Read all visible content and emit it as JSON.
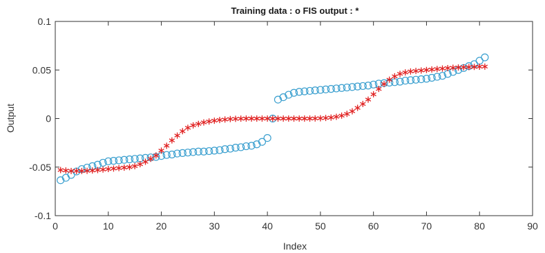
{
  "chart_data": {
    "type": "scatter",
    "title": "Training data : o   FIS output : *",
    "xlabel": "Index",
    "ylabel": "Output",
    "xlim": [
      0,
      90
    ],
    "ylim": [
      -0.1,
      0.1
    ],
    "xticks": [
      0,
      10,
      20,
      30,
      40,
      50,
      60,
      70,
      80,
      90
    ],
    "yticks": [
      -0.1,
      -0.05,
      0,
      0.05,
      0.1
    ],
    "xtick_labels": [
      "0",
      "10",
      "20",
      "30",
      "40",
      "50",
      "60",
      "70",
      "80",
      "90"
    ],
    "ytick_labels": [
      "-0.1",
      "-0.05",
      "0",
      "0.05",
      "0.1"
    ],
    "grid": false,
    "x": [
      1,
      2,
      3,
      4,
      5,
      6,
      7,
      8,
      9,
      10,
      11,
      12,
      13,
      14,
      15,
      16,
      17,
      18,
      19,
      20,
      21,
      22,
      23,
      24,
      25,
      26,
      27,
      28,
      29,
      30,
      31,
      32,
      33,
      34,
      35,
      36,
      37,
      38,
      39,
      40,
      41,
      42,
      43,
      44,
      45,
      46,
      47,
      48,
      49,
      50,
      51,
      52,
      53,
      54,
      55,
      56,
      57,
      58,
      59,
      60,
      61,
      62,
      63,
      64,
      65,
      66,
      67,
      68,
      69,
      70,
      71,
      72,
      73,
      74,
      75,
      76,
      77,
      78,
      79,
      80,
      81
    ],
    "series": [
      {
        "marker": "o",
        "color": "#3a9fcf",
        "values": [
          -0.0635,
          -0.061,
          -0.058,
          -0.0545,
          -0.052,
          -0.0505,
          -0.049,
          -0.0475,
          -0.0455,
          -0.044,
          -0.0435,
          -0.043,
          -0.0425,
          -0.042,
          -0.0415,
          -0.041,
          -0.0405,
          -0.04,
          -0.0395,
          -0.0385,
          -0.0375,
          -0.037,
          -0.036,
          -0.0355,
          -0.035,
          -0.0345,
          -0.034,
          -0.034,
          -0.0335,
          -0.033,
          -0.0325,
          -0.0315,
          -0.031,
          -0.03,
          -0.0295,
          -0.0285,
          -0.028,
          -0.0265,
          -0.024,
          -0.02,
          0.0,
          0.0195,
          0.022,
          0.0245,
          0.0265,
          0.0275,
          0.028,
          0.0285,
          0.029,
          0.0295,
          0.03,
          0.0305,
          0.031,
          0.0315,
          0.032,
          0.0325,
          0.033,
          0.0335,
          0.034,
          0.035,
          0.036,
          0.0365,
          0.037,
          0.0375,
          0.038,
          0.039,
          0.0395,
          0.04,
          0.0405,
          0.041,
          0.042,
          0.043,
          0.044,
          0.046,
          0.048,
          0.05,
          0.052,
          0.054,
          0.056,
          0.0595,
          0.063
        ]
      },
      {
        "marker": "*",
        "color": "#e02020",
        "values": [
          -0.053,
          -0.0535,
          -0.054,
          -0.054,
          -0.054,
          -0.0538,
          -0.0535,
          -0.053,
          -0.0525,
          -0.052,
          -0.0515,
          -0.051,
          -0.0505,
          -0.05,
          -0.049,
          -0.047,
          -0.0445,
          -0.0415,
          -0.038,
          -0.033,
          -0.028,
          -0.0225,
          -0.0175,
          -0.013,
          -0.0095,
          -0.007,
          -0.0055,
          -0.004,
          -0.003,
          -0.0022,
          -0.0015,
          -0.001,
          -0.0005,
          -0.0003,
          -0.0001,
          0.0,
          0.0,
          0.0,
          0.0,
          0.0,
          0.0,
          0.0,
          0.0,
          0.0,
          0.0,
          0.0,
          0.0,
          0.0,
          0.0001,
          0.0003,
          0.0006,
          0.001,
          0.0018,
          0.003,
          0.0048,
          0.0075,
          0.011,
          0.015,
          0.0195,
          0.025,
          0.0305,
          0.0355,
          0.04,
          0.0435,
          0.046,
          0.0475,
          0.0485,
          0.049,
          0.0495,
          0.05,
          0.0505,
          0.051,
          0.0515,
          0.052,
          0.0523,
          0.0526,
          0.0528,
          0.053,
          0.0532,
          0.0534,
          0.0535
        ]
      }
    ]
  }
}
